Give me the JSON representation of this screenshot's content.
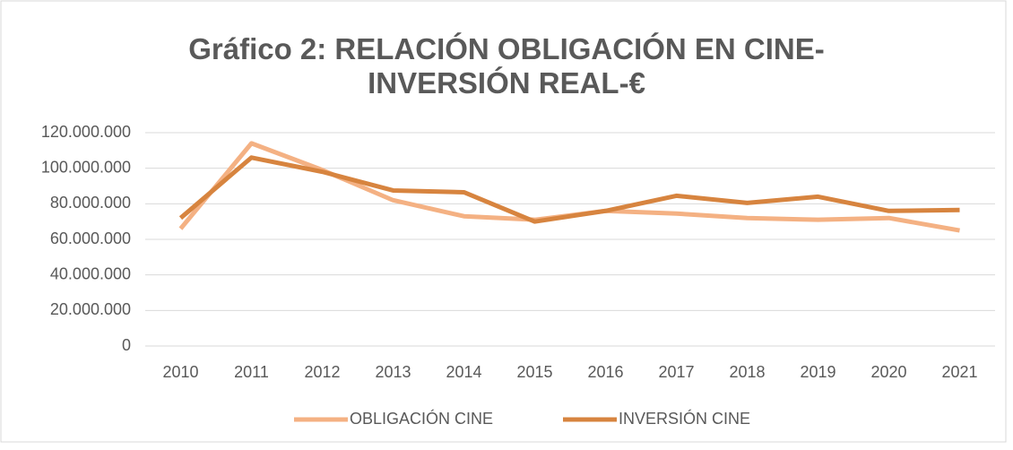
{
  "chart_data": {
    "type": "line",
    "title": "Gráfico 2: RELACIÓN OBLIGACIÓN EN CINE-INVERSIÓN REAL-€",
    "categories": [
      "2010",
      "2011",
      "2012",
      "2013",
      "2014",
      "2015",
      "2016",
      "2017",
      "2018",
      "2019",
      "2020",
      "2021"
    ],
    "series": [
      {
        "name": "OBLIGACIÓN CINE",
        "color": "#f4b183",
        "values": [
          66000000,
          114000000,
          99000000,
          82000000,
          73000000,
          71000000,
          76000000,
          74500000,
          72000000,
          71000000,
          72000000,
          65000000
        ]
      },
      {
        "name": "INVERSIÓN CINE",
        "color": "#d7843f",
        "values": [
          72000000,
          106000000,
          98000000,
          87500000,
          86500000,
          70000000,
          76000000,
          84500000,
          80500000,
          84000000,
          76000000,
          76500000
        ]
      }
    ],
    "ylim": [
      0,
      120000000
    ],
    "yticks": [
      0,
      {
        "value": 20000000,
        "label": "20.000.000"
      },
      {
        "value": 40000000,
        "label": "40.000.000"
      },
      {
        "value": 60000000,
        "label": "60.000.000"
      },
      {
        "value": 80000000,
        "label": "80.000.000"
      },
      {
        "value": 100000000,
        "label": "100.000.000"
      },
      {
        "value": 120000000,
        "label": "120.000.000"
      }
    ],
    "grid": true,
    "legend": "bottom"
  }
}
